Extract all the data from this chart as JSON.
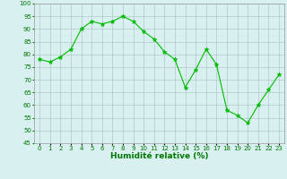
{
  "x": [
    0,
    1,
    2,
    3,
    4,
    5,
    6,
    7,
    8,
    9,
    10,
    11,
    12,
    13,
    14,
    15,
    16,
    17,
    18,
    19,
    20,
    21,
    22,
    23
  ],
  "y": [
    78,
    77,
    79,
    82,
    90,
    93,
    92,
    93,
    95,
    93,
    89,
    86,
    81,
    78,
    67,
    74,
    82,
    76,
    58,
    56,
    53,
    60,
    66,
    72
  ],
  "line_color": "#00bb00",
  "marker": "*",
  "marker_size": 3.5,
  "bg_color": "#d8f0f0",
  "grid_color": "#b0c8c8",
  "xlabel": "Humidité relative (%)",
  "ylim": [
    45,
    100
  ],
  "yticks": [
    45,
    50,
    55,
    60,
    65,
    70,
    75,
    80,
    85,
    90,
    95,
    100
  ],
  "xlim": [
    -0.5,
    23.5
  ],
  "xlabel_color": "#007700",
  "tick_color": "#007700",
  "tick_fontsize": 5.0,
  "ylabel_fontsize": 6.5
}
